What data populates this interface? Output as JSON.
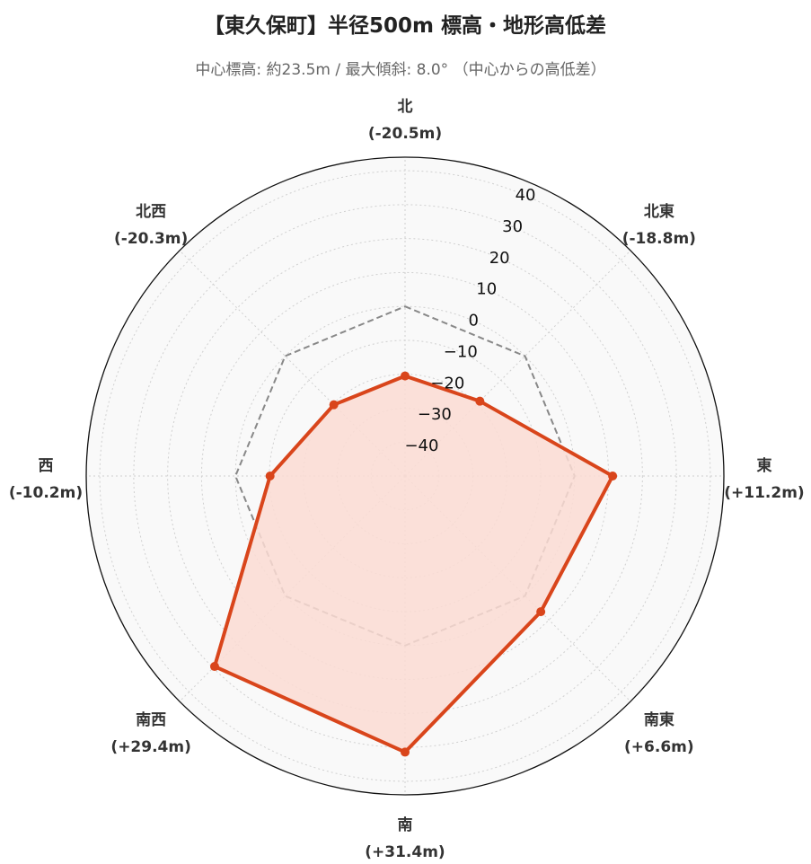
{
  "chart_data": {
    "type": "radar",
    "title": "【東久保町】半径500m 標高・地形高低差",
    "subtitle": "中心標高: 約23.5m / 最大傾斜: 8.0° （中心からの高低差）",
    "directions": [
      "北",
      "北東",
      "東",
      "南東",
      "南",
      "南西",
      "西",
      "北西"
    ],
    "direction_value_labels": [
      "(-20.5m)",
      "(-18.8m)",
      "(+11.2m)",
      "(+6.6m)",
      "(+31.4m)",
      "(+29.4m)",
      "(-10.2m)",
      "(-20.3m)"
    ],
    "series": [
      {
        "values": [
          -20.5,
          -18.8,
          11.2,
          6.6,
          31.4,
          29.4,
          -10.2,
          -20.3
        ]
      }
    ],
    "reference_line": {
      "value": 0,
      "style": "dashed"
    },
    "r_range": [
      -50,
      44
    ],
    "r_ticks": [
      -40,
      -30,
      -20,
      -10,
      0,
      10,
      20,
      30,
      40
    ],
    "grid": true,
    "colors": {
      "series_line": "#d9451b",
      "series_fill": "#fcdcd3",
      "reference": "#888888",
      "grid": "#d0d0d0",
      "plot_bg": "#f9f9f9",
      "outer_ring": "#111111"
    }
  }
}
